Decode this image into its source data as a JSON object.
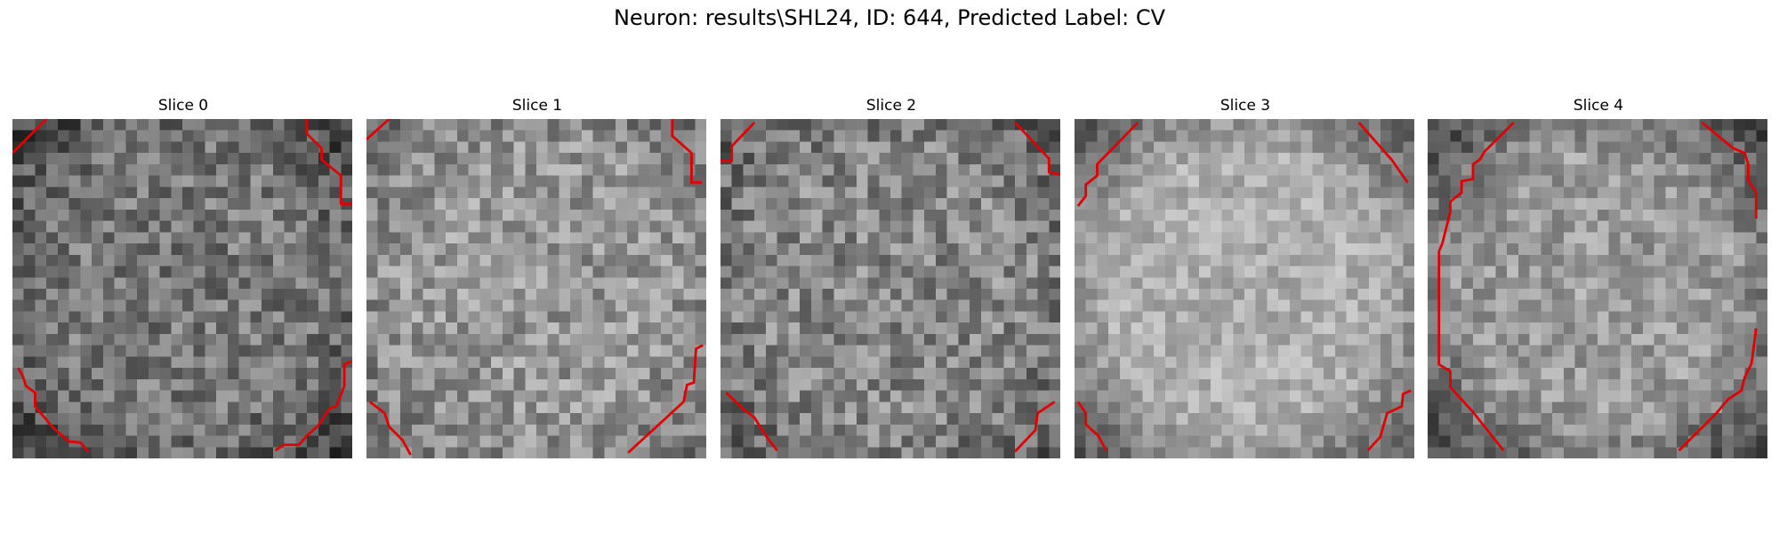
{
  "figure": {
    "title": "Neuron: results\\SHL24, ID: 644, Predicted Label: CV"
  },
  "panels": [
    {
      "title": "Slice 0"
    },
    {
      "title": "Slice 1"
    },
    {
      "title": "Slice 2"
    },
    {
      "title": "Slice 3"
    },
    {
      "title": "Slice 4"
    }
  ],
  "style": {
    "contour_color": "#e00000",
    "colormap": "grayscale"
  }
}
